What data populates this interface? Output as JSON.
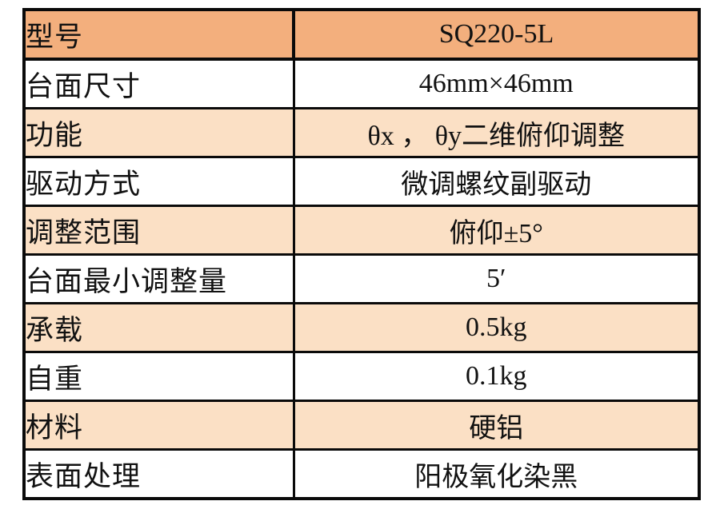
{
  "page": {
    "background": "#ffffff"
  },
  "colors": {
    "header_bg": "#f3af7d",
    "stripe_bg": "#fbe0c5",
    "plain_bg": "#ffffff",
    "border": "#0a0a0a",
    "text": "#111111"
  },
  "table": {
    "rows": [
      {
        "label": "型号",
        "value": "SQ220-5L",
        "shade": "header"
      },
      {
        "label": "台面尺寸",
        "value": "46mm×46mm",
        "shade": "plain"
      },
      {
        "label": "功能",
        "value": "θx ， θy二维俯仰调整",
        "shade": "stripe"
      },
      {
        "label": "驱动方式",
        "value": "微调螺纹副驱动",
        "shade": "plain"
      },
      {
        "label": "调整范围",
        "value": "俯仰±5°",
        "shade": "stripe"
      },
      {
        "label": "台面最小调整量",
        "value": "5′",
        "shade": "plain"
      },
      {
        "label": "承载",
        "value": "0.5kg",
        "shade": "stripe"
      },
      {
        "label": "自重",
        "value": "0.1kg",
        "shade": "plain"
      },
      {
        "label": "材料",
        "value": "硬铝",
        "shade": "stripe"
      },
      {
        "label": "表面处理",
        "value": "阳极氧化染黑",
        "shade": "plain"
      }
    ]
  }
}
